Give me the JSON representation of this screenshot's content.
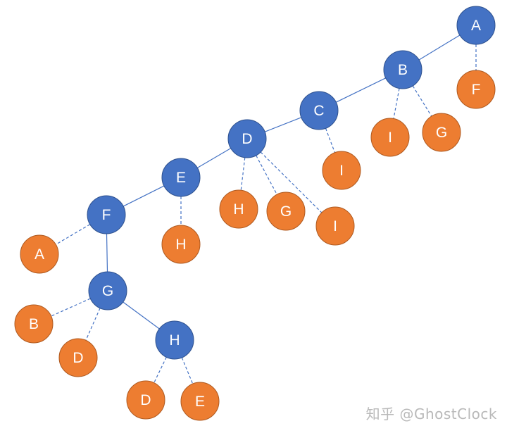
{
  "diagram": {
    "colors": {
      "tree_node": "#4472C4",
      "tree_node_border": "#2F528F",
      "leaf_node": "#ED7D31",
      "leaf_node_border": "#AE5A21",
      "tree_edge": "#4472C4",
      "leaf_edge": "#4472C4"
    },
    "nodes": [
      {
        "id": "A",
        "label": "A",
        "kind": "tree"
      },
      {
        "id": "B",
        "label": "B",
        "kind": "tree"
      },
      {
        "id": "C",
        "label": "C",
        "kind": "tree"
      },
      {
        "id": "D",
        "label": "D",
        "kind": "tree"
      },
      {
        "id": "E",
        "label": "E",
        "kind": "tree"
      },
      {
        "id": "F",
        "label": "F",
        "kind": "tree"
      },
      {
        "id": "G",
        "label": "G",
        "kind": "tree"
      },
      {
        "id": "H",
        "label": "H",
        "kind": "tree"
      },
      {
        "id": "A_F",
        "label": "F",
        "kind": "leaf"
      },
      {
        "id": "B_I",
        "label": "I",
        "kind": "leaf"
      },
      {
        "id": "B_G",
        "label": "G",
        "kind": "leaf"
      },
      {
        "id": "C_I",
        "label": "I",
        "kind": "leaf"
      },
      {
        "id": "D_H",
        "label": "H",
        "kind": "leaf"
      },
      {
        "id": "D_G",
        "label": "G",
        "kind": "leaf"
      },
      {
        "id": "D_I",
        "label": "I",
        "kind": "leaf"
      },
      {
        "id": "E_H",
        "label": "H",
        "kind": "leaf"
      },
      {
        "id": "F_A",
        "label": "A",
        "kind": "leaf"
      },
      {
        "id": "G_B",
        "label": "B",
        "kind": "leaf"
      },
      {
        "id": "G_D",
        "label": "D",
        "kind": "leaf"
      },
      {
        "id": "H_D",
        "label": "D",
        "kind": "leaf"
      },
      {
        "id": "H_E",
        "label": "E",
        "kind": "leaf"
      }
    ],
    "edges": [
      {
        "from": "A",
        "to": "B",
        "style": "solid"
      },
      {
        "from": "B",
        "to": "C",
        "style": "solid"
      },
      {
        "from": "C",
        "to": "D",
        "style": "solid"
      },
      {
        "from": "D",
        "to": "E",
        "style": "solid"
      },
      {
        "from": "E",
        "to": "F",
        "style": "solid"
      },
      {
        "from": "F",
        "to": "G",
        "style": "solid"
      },
      {
        "from": "G",
        "to": "H",
        "style": "solid"
      },
      {
        "from": "A",
        "to": "A_F",
        "style": "dashed"
      },
      {
        "from": "B",
        "to": "B_I",
        "style": "dashed"
      },
      {
        "from": "B",
        "to": "B_G",
        "style": "dashed"
      },
      {
        "from": "C",
        "to": "C_I",
        "style": "dashed"
      },
      {
        "from": "D",
        "to": "D_H",
        "style": "dashed"
      },
      {
        "from": "D",
        "to": "D_G",
        "style": "dashed"
      },
      {
        "from": "D",
        "to": "D_I",
        "style": "dashed"
      },
      {
        "from": "E",
        "to": "E_H",
        "style": "dashed"
      },
      {
        "from": "F",
        "to": "F_A",
        "style": "dashed"
      },
      {
        "from": "G",
        "to": "G_B",
        "style": "dashed"
      },
      {
        "from": "G",
        "to": "G_D",
        "style": "dashed"
      },
      {
        "from": "H",
        "to": "H_D",
        "style": "dashed"
      },
      {
        "from": "H",
        "to": "H_E",
        "style": "dashed"
      }
    ]
  },
  "watermark": {
    "text": "知乎 @GhostClock"
  }
}
